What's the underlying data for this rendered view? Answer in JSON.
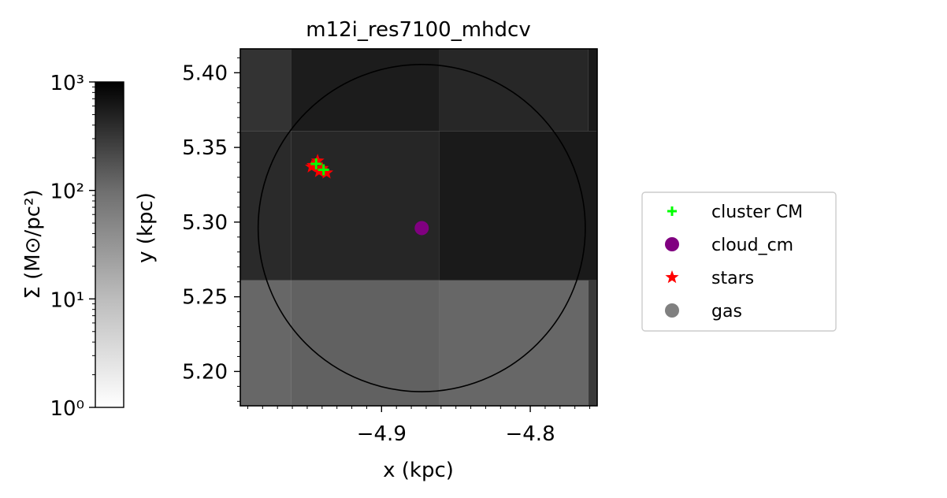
{
  "chart_data": {
    "type": "heatmap",
    "title": "m12i_res7100_mhdcv",
    "xlabel": "x (kpc)",
    "ylabel": "y (kpc)",
    "xlim": [
      -4.995,
      -4.755
    ],
    "ylim": [
      5.177,
      5.416
    ],
    "x_ticks": [
      -4.9,
      -4.8
    ],
    "x_tick_labels": [
      "−4.9",
      "−4.8"
    ],
    "y_ticks": [
      5.2,
      5.25,
      5.3,
      5.35,
      5.4
    ],
    "y_tick_labels": [
      "5.20",
      "5.25",
      "5.30",
      "5.35",
      "5.40"
    ],
    "grid": false,
    "legend_position": "right",
    "heatmap": {
      "cells": [
        {
          "x0": -4.995,
          "x1": -4.961,
          "y0": 5.177,
          "y1": 5.261,
          "color": "#676767"
        },
        {
          "x0": -4.961,
          "x1": -4.861,
          "y0": 5.177,
          "y1": 5.261,
          "color": "#616161"
        },
        {
          "x0": -4.861,
          "x1": -4.761,
          "y0": 5.177,
          "y1": 5.261,
          "color": "#676767"
        },
        {
          "x0": -4.761,
          "x1": -4.755,
          "y0": 5.177,
          "y1": 5.261,
          "color": "#3a3a3a"
        },
        {
          "x0": -4.995,
          "x1": -4.961,
          "y0": 5.261,
          "y1": 5.361,
          "color": "#2a2a2a"
        },
        {
          "x0": -4.961,
          "x1": -4.861,
          "y0": 5.261,
          "y1": 5.361,
          "color": "#262626"
        },
        {
          "x0": -4.861,
          "x1": -4.755,
          "y0": 5.261,
          "y1": 5.361,
          "color": "#1a1a1a"
        },
        {
          "x0": -4.995,
          "x1": -4.961,
          "y0": 5.361,
          "y1": 5.416,
          "color": "#333333"
        },
        {
          "x0": -4.961,
          "x1": -4.861,
          "y0": 5.361,
          "y1": 5.416,
          "color": "#1c1c1c"
        },
        {
          "x0": -4.861,
          "x1": -4.761,
          "y0": 5.361,
          "y1": 5.416,
          "color": "#272727"
        },
        {
          "x0": -4.761,
          "x1": -4.755,
          "y0": 5.361,
          "y1": 5.416,
          "color": "#1a1a1a"
        }
      ]
    },
    "circle": {
      "cx": -4.873,
      "cy": 5.296,
      "r": 0.11,
      "color": "#000000"
    },
    "series": [
      {
        "name": "cluster CM",
        "marker": "plus",
        "color": "#00ff00",
        "points": [
          [
            -4.944,
            5.339
          ],
          [
            -4.939,
            5.335
          ]
        ]
      },
      {
        "name": "cloud_cm",
        "marker": "circle",
        "color": "#800080",
        "points": [
          [
            -4.873,
            5.296
          ]
        ]
      },
      {
        "name": "stars",
        "marker": "star",
        "color": "#ff0000",
        "points": [
          [
            -4.946,
            5.338
          ],
          [
            -4.943,
            5.341
          ],
          [
            -4.94,
            5.336
          ],
          [
            -4.937,
            5.333
          ],
          [
            -4.942,
            5.334
          ],
          [
            -4.947,
            5.337
          ]
        ]
      },
      {
        "name": "gas",
        "marker": "circle",
        "color": "#808080",
        "points": []
      }
    ],
    "colorbar": {
      "label": "Σ (M⊙/pc²)",
      "scale": "log",
      "range": [
        1,
        1000
      ],
      "tick_labels": [
        "10⁰",
        "10¹",
        "10²",
        "10³"
      ],
      "cmap": "Greys"
    }
  }
}
